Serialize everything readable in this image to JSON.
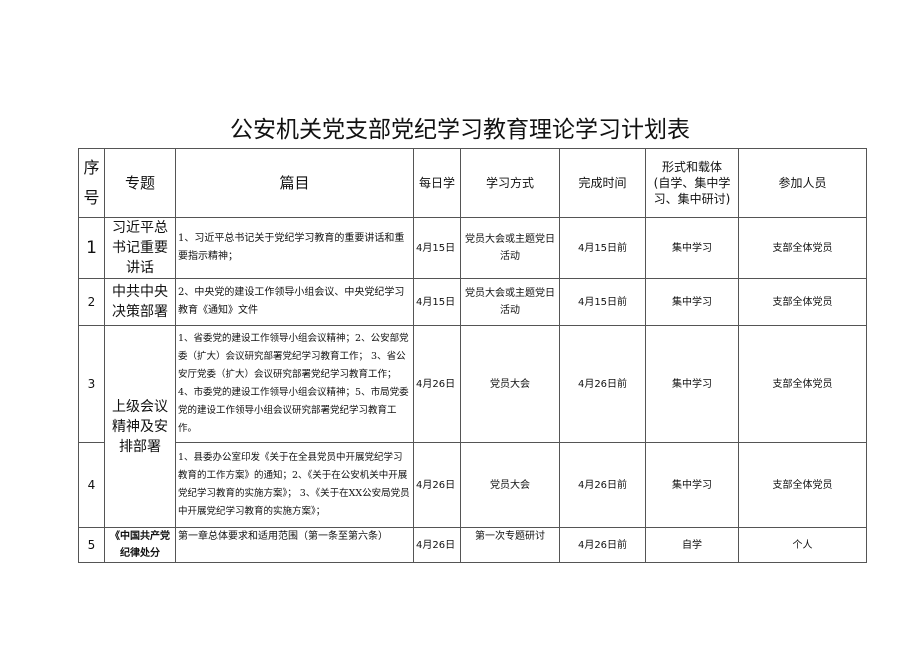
{
  "title": "公安机关党支部党纪学习教育理论学习计划表",
  "headers": {
    "seq": "序号",
    "topic": "专题",
    "pieces": "篇目",
    "daily": "每日学",
    "method": "学习方式",
    "deadline": "完成时间",
    "form_title": "形式和载体",
    "form_sub": "(自学、集中学习、集中研讨)",
    "participants": "参加人员"
  },
  "rows": [
    {
      "seq": "1",
      "topic": "习近平总书记重要讲话",
      "pieces": "1、习近平总书记关于党纪学习教育的重要讲话和重要指示精神；",
      "daily": "4月15日",
      "method": "党员大会或主题党日活动",
      "deadline": "4月15日前",
      "form": "集中学习",
      "participants": "支部全体党员"
    },
    {
      "seq": "2",
      "topic": "中共中央决策部署",
      "pieces": "2、中央党的建设工作领导小组会议、中央党纪学习教育《通知》文件",
      "daily": "4月15日",
      "method": "党员大会或主题党日活动",
      "deadline": "4月15日前",
      "form": "集中学习",
      "participants": "支部全体党员"
    },
    {
      "seq": "3",
      "topic": "上级会议精神及安排部署",
      "pieces": "1、省委党的建设工作领导小组会议精神；2、公安部党委（扩大）会议研究部署党纪学习教育工作； 3、省公安厅党委（扩大）会议研究部署党纪学习教育工作；4、市委党的建设工作领导小组会议精神；5、市局党委党的建设工作领导小组会议研究部署党纪学习教育工作。",
      "daily": "4月26日",
      "method": "党员大会",
      "deadline": "4月26日前",
      "form": "集中学习",
      "participants": "支部全体党员"
    },
    {
      "seq": "4",
      "topic": "",
      "pieces": "1、县委办公室印发《关于在全县党员中开展党纪学习教育的工作方案》的通知；2、《关于在公安机关中开展党纪学习教育的实施方案》； 3、《关于在XX公安局党员中开展党纪学习教育的实施方案》；",
      "daily": "4月26日",
      "method": "党员大会",
      "deadline": "4月26日前",
      "form": "集中学习",
      "participants": "支部全体党员"
    },
    {
      "seq": "5",
      "topic": "《中国共产党纪律处分",
      "pieces": "第一章总体要求和适用范围（第一条至第六条）",
      "daily": "4月26日",
      "method": "第一次专题研讨",
      "deadline": "4月26日前",
      "form": "自学",
      "participants": "个人"
    }
  ]
}
